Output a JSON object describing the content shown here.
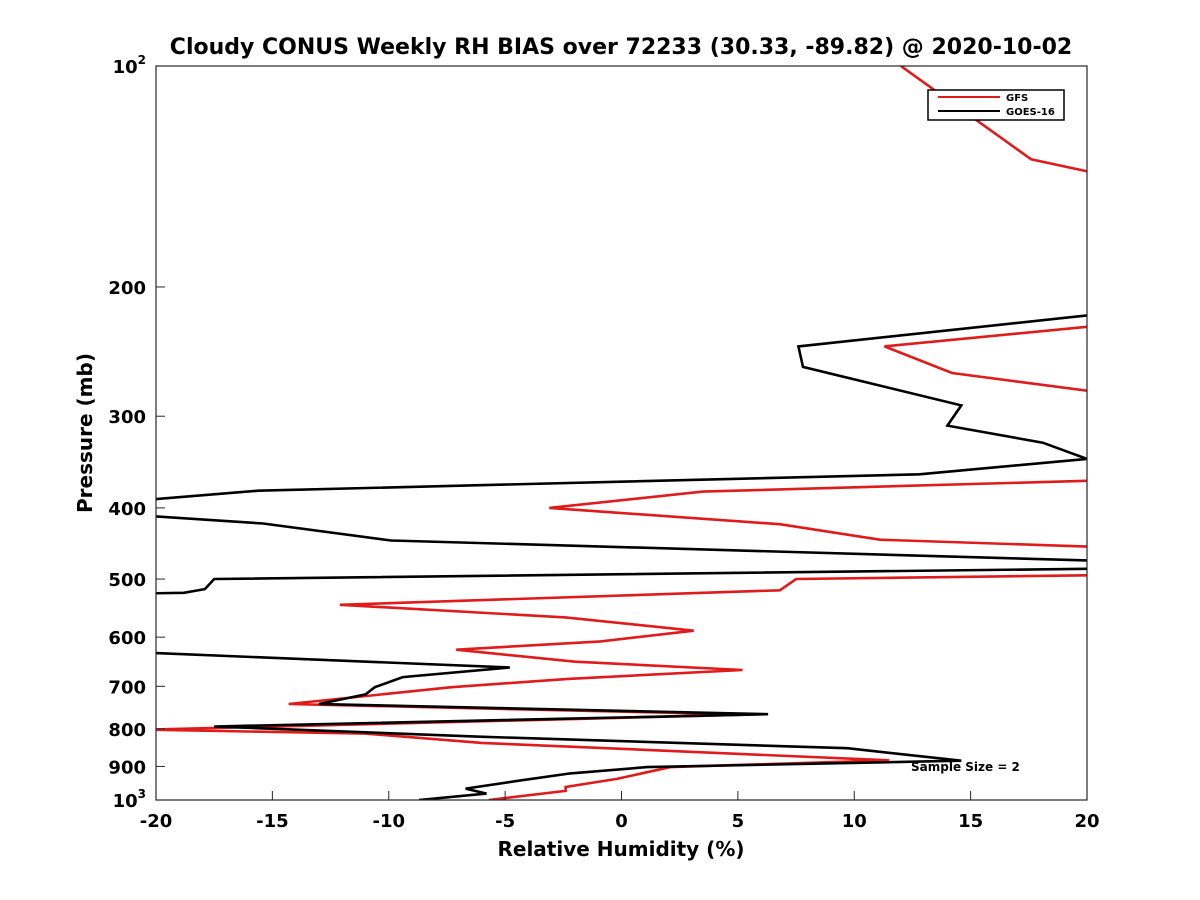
{
  "chart_data": {
    "type": "line",
    "title": "Cloudy CONUS Weekly RH BIAS over 72233 (30.33, -89.82) @ 2020-10-02",
    "xlabel": "Relative Humidity (%)",
    "ylabel": "Pressure (mb)",
    "xlim": [
      -20,
      20
    ],
    "ylim": [
      100,
      1000
    ],
    "yscale": "log",
    "yreversed": true,
    "x_ticks": [
      -20,
      -15,
      -10,
      -5,
      0,
      5,
      10,
      15,
      20
    ],
    "x_tick_labels": [
      "-20",
      "-15",
      "-10",
      "-5",
      "0",
      "5",
      "10",
      "15",
      "20"
    ],
    "y_ticks": [
      {
        "value": 100,
        "label": "10",
        "exp": "2"
      },
      {
        "value": 200,
        "label": "200"
      },
      {
        "value": 300,
        "label": "300"
      },
      {
        "value": 400,
        "label": "400"
      },
      {
        "value": 500,
        "label": "500"
      },
      {
        "value": 600,
        "label": "600"
      },
      {
        "value": 700,
        "label": "700"
      },
      {
        "value": 800,
        "label": "800"
      },
      {
        "value": 900,
        "label": "900"
      },
      {
        "value": 1000,
        "label": "10",
        "exp": "3"
      }
    ],
    "legend": {
      "position": "top-right"
    },
    "annotation": "Sample Size = 2",
    "series": [
      {
        "name": "GFS",
        "color": "#e01b1b",
        "segments": [
          [
            [
              12.0,
              100
            ],
            [
              17.6,
              134
            ],
            [
              20.4,
              140
            ]
          ],
          [
            [
              20.4,
              226
            ],
            [
              11.3,
              241
            ],
            [
              14.2,
              262
            ],
            [
              20.4,
              278
            ]
          ],
          [
            [
              20.4,
              367
            ],
            [
              3.5,
              380
            ],
            [
              -3.1,
              400
            ],
            [
              6.8,
              421
            ],
            [
              11.1,
              442
            ],
            [
              20.4,
              452
            ]
          ],
          [
            [
              20.4,
              494
            ],
            [
              7.5,
              500
            ],
            [
              6.8,
              518
            ],
            [
              -12.1,
              542
            ],
            [
              -2.4,
              564
            ],
            [
              3.1,
              588
            ],
            [
              -0.9,
              608
            ],
            [
              -7.1,
              624
            ],
            [
              -2.0,
              648
            ],
            [
              5.2,
              665
            ],
            [
              -2.3,
              684
            ],
            [
              -7.3,
              702
            ],
            [
              -14.3,
              740
            ],
            [
              5.5,
              765
            ],
            [
              -20.4,
              802
            ],
            [
              -11.0,
              812
            ],
            [
              -6.0,
              836
            ],
            [
              11.5,
              883
            ],
            [
              2.1,
              902
            ],
            [
              -0.2,
              936
            ],
            [
              -2.4,
              960
            ],
            [
              -2.4,
              972
            ],
            [
              -5.7,
              1000
            ]
          ]
        ]
      },
      {
        "name": "GOES-16",
        "color": "#000000",
        "segments": [
          [
            [
              20.4,
              218
            ],
            [
              7.6,
              241
            ],
            [
              7.8,
              257
            ],
            [
              14.6,
              290
            ],
            [
              14.0,
              309
            ],
            [
              18.1,
              326
            ],
            [
              20.0,
              343
            ],
            [
              12.8,
              360
            ],
            [
              -15.6,
              379
            ],
            [
              -20.4,
              390
            ]
          ],
          [
            [
              -20.4,
              410
            ],
            [
              -15.4,
              420
            ],
            [
              -9.9,
              443
            ],
            [
              20.4,
              472
            ]
          ],
          [
            [
              20.4,
              484
            ],
            [
              -17.5,
              500
            ],
            [
              -17.9,
              516
            ],
            [
              -18.8,
              522
            ],
            [
              -20.4,
              523
            ]
          ],
          [
            [
              -20.4,
              630
            ],
            [
              -4.8,
              660
            ],
            [
              -9.4,
              680
            ],
            [
              -10.6,
              702
            ],
            [
              -11.0,
              718
            ],
            [
              -13.0,
              740
            ],
            [
              6.3,
              764
            ],
            [
              -17.5,
              794
            ],
            [
              -6.1,
              820
            ],
            [
              9.7,
              850
            ],
            [
              14.6,
              884
            ],
            [
              1.1,
              902
            ],
            [
              -2.2,
              920
            ],
            [
              -4.3,
              940
            ],
            [
              -6.7,
              965
            ],
            [
              -5.8,
              980
            ],
            [
              -8.7,
              1000
            ]
          ]
        ]
      }
    ]
  }
}
